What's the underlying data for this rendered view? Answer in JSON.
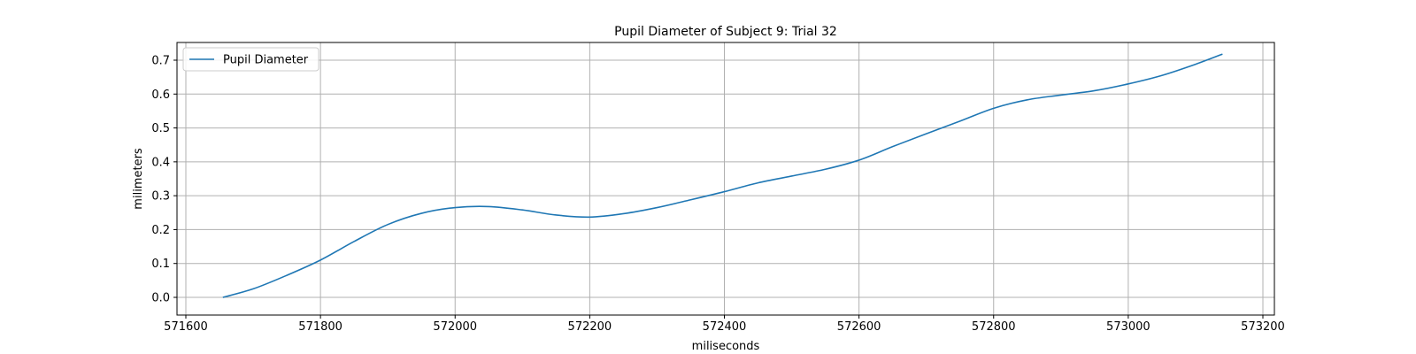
{
  "chart_data": {
    "type": "line",
    "title": "Pupil Diameter of Subject 9: Trial 32",
    "xlabel": "miliseconds",
    "ylabel": "milimeters",
    "xlim": [
      571600,
      573200
    ],
    "ylim": [
      0.0,
      0.7
    ],
    "x_ticks": [
      571600,
      571800,
      572000,
      572200,
      572400,
      572600,
      572800,
      573000,
      573200
    ],
    "y_ticks": [
      0.0,
      0.1,
      0.2,
      0.3,
      0.4,
      0.5,
      0.6,
      0.7
    ],
    "grid": true,
    "legend": "top-left",
    "series": [
      {
        "name": "Pupil Diameter",
        "color": "#1f77b4",
        "x": [
          571655,
          571700,
          571750,
          571800,
          571850,
          571900,
          571950,
          572000,
          572050,
          572100,
          572150,
          572200,
          572250,
          572300,
          572350,
          572400,
          572450,
          572500,
          572550,
          572600,
          572650,
          572700,
          572750,
          572800,
          572850,
          572900,
          572950,
          573000,
          573050,
          573100,
          573140
        ],
        "y": [
          0.0,
          0.025,
          0.065,
          0.11,
          0.165,
          0.215,
          0.248,
          0.265,
          0.268,
          0.258,
          0.243,
          0.237,
          0.247,
          0.265,
          0.288,
          0.312,
          0.338,
          0.358,
          0.378,
          0.405,
          0.445,
          0.483,
          0.52,
          0.558,
          0.583,
          0.597,
          0.61,
          0.63,
          0.655,
          0.688,
          0.718
        ]
      }
    ]
  }
}
